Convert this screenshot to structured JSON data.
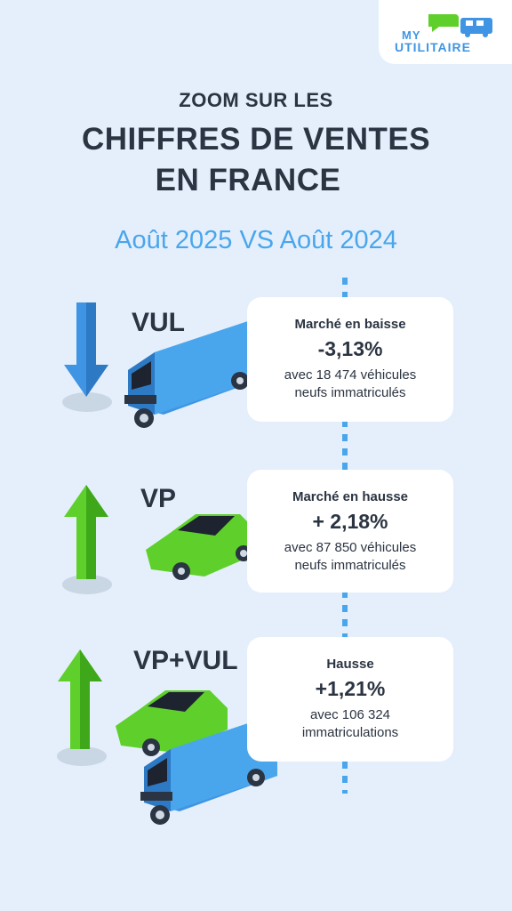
{
  "logo": {
    "line1": "MY",
    "line2": "UTILITAIRE"
  },
  "header": {
    "line1": "ZOOM SUR LES",
    "line2a": "CHIFFRES DE VENTES",
    "line2b": "EN FRANCE",
    "subtitle": "Août 2025 VS Août 2024"
  },
  "colors": {
    "blue": "#3f95e4",
    "green": "#5fd02b",
    "dark": "#2b3442",
    "background": "#e4effb"
  },
  "sections": [
    {
      "label": "VUL",
      "trend": "down",
      "title": "Marché en baisse",
      "percent": "-3,13%",
      "desc1": "avec 18 474 véhicules",
      "desc2": "neufs immatriculés"
    },
    {
      "label": "VP",
      "trend": "up",
      "title": "Marché en hausse",
      "percent": "+ 2,18%",
      "desc1": "avec 87 850 véhicules",
      "desc2": "neufs immatriculés"
    },
    {
      "label": "VP+VUL",
      "trend": "up",
      "title": "Hausse",
      "percent": "+1,21%",
      "desc1": "avec 106 324",
      "desc2": "immatriculations"
    }
  ]
}
